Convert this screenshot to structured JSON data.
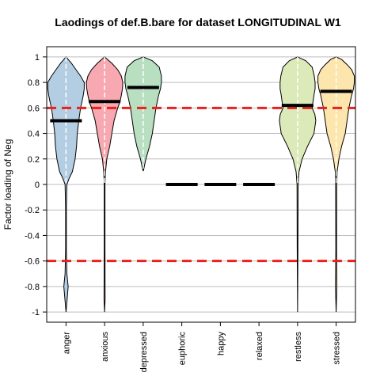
{
  "chart_data": {
    "type": "violin",
    "title": "Laodings of def.B.bare for dataset LONGITUDINAL W1",
    "xlabel": "",
    "ylabel": "Factor loading of Neg",
    "ylim": [
      -1.08,
      1.08
    ],
    "yticks": [
      1,
      0.8,
      0.6,
      0.4,
      0.2,
      0,
      -0.2,
      -0.4,
      -0.6,
      -0.8,
      -1
    ],
    "ytick_labels": [
      "1",
      "0.8",
      "0.6",
      "0.4",
      "0.2",
      "0",
      "-0.2",
      "-0.4",
      "-0.6",
      "-0.8",
      "-1"
    ],
    "grid": true,
    "threshold_lines": [
      0.6,
      -0.6
    ],
    "threshold_color": "#e8211c",
    "categories": [
      "anger",
      "anxious",
      "depressed",
      "euphoric",
      "happy",
      "relaxed",
      "restless",
      "stressed"
    ],
    "colors": [
      "#b3cde3",
      "#f7a8b0",
      "#b8dfc0",
      "#ffffff",
      "#ffffff",
      "#ffffff",
      "#dbeab8",
      "#fde6ad"
    ],
    "means": [
      0.5,
      0.65,
      0.76,
      0,
      0,
      0,
      0.62,
      0.73
    ],
    "ranges": [
      [
        -1.0,
        1.0
      ],
      [
        -1.0,
        1.0
      ],
      [
        0.1,
        1.0
      ],
      [
        0,
        0
      ],
      [
        0,
        0
      ],
      [
        0,
        0
      ],
      [
        -1.0,
        1.0
      ],
      [
        -1.0,
        1.0
      ]
    ],
    "density": [
      [
        [
          1.0,
          0.0
        ],
        [
          0.95,
          0.3
        ],
        [
          0.9,
          0.55
        ],
        [
          0.85,
          0.8
        ],
        [
          0.8,
          1.0
        ],
        [
          0.75,
          1.0
        ],
        [
          0.7,
          0.95
        ],
        [
          0.65,
          0.88
        ],
        [
          0.6,
          0.8
        ],
        [
          0.5,
          0.7
        ],
        [
          0.4,
          0.62
        ],
        [
          0.3,
          0.58
        ],
        [
          0.2,
          0.5
        ],
        [
          0.1,
          0.35
        ],
        [
          0.05,
          0.18
        ],
        [
          0.0,
          0.05
        ],
        [
          -0.2,
          0.02
        ],
        [
          -0.5,
          0.02
        ],
        [
          -0.7,
          0.05
        ],
        [
          -0.8,
          0.12
        ],
        [
          -0.9,
          0.06
        ],
        [
          -1.0,
          0.0
        ]
      ],
      [
        [
          1.0,
          0.0
        ],
        [
          0.95,
          0.4
        ],
        [
          0.9,
          0.72
        ],
        [
          0.85,
          0.92
        ],
        [
          0.8,
          1.0
        ],
        [
          0.75,
          0.98
        ],
        [
          0.7,
          0.92
        ],
        [
          0.65,
          0.85
        ],
        [
          0.6,
          0.72
        ],
        [
          0.5,
          0.52
        ],
        [
          0.4,
          0.4
        ],
        [
          0.3,
          0.28
        ],
        [
          0.2,
          0.12
        ],
        [
          0.1,
          0.05
        ],
        [
          0.0,
          0.02
        ],
        [
          -0.5,
          0.02
        ],
        [
          -0.9,
          0.03
        ],
        [
          -1.0,
          0.0
        ]
      ],
      [
        [
          1.0,
          0.0
        ],
        [
          0.97,
          0.5
        ],
        [
          0.92,
          0.88
        ],
        [
          0.85,
          1.0
        ],
        [
          0.8,
          1.0
        ],
        [
          0.75,
          0.95
        ],
        [
          0.7,
          0.85
        ],
        [
          0.6,
          0.7
        ],
        [
          0.5,
          0.6
        ],
        [
          0.4,
          0.5
        ],
        [
          0.3,
          0.35
        ],
        [
          0.2,
          0.15
        ],
        [
          0.1,
          0.0
        ]
      ],
      [],
      [],
      [],
      [
        [
          1.0,
          0.0
        ],
        [
          0.97,
          0.45
        ],
        [
          0.92,
          0.8
        ],
        [
          0.85,
          0.92
        ],
        [
          0.8,
          0.96
        ],
        [
          0.75,
          0.96
        ],
        [
          0.7,
          0.9
        ],
        [
          0.65,
          0.85
        ],
        [
          0.6,
          0.8
        ],
        [
          0.55,
          0.95
        ],
        [
          0.5,
          1.0
        ],
        [
          0.4,
          0.9
        ],
        [
          0.3,
          0.55
        ],
        [
          0.2,
          0.25
        ],
        [
          0.1,
          0.08
        ],
        [
          0.0,
          0.03
        ],
        [
          -0.5,
          0.02
        ],
        [
          -1.0,
          0.0
        ]
      ],
      [
        [
          1.0,
          0.0
        ],
        [
          0.98,
          0.3
        ],
        [
          0.94,
          0.6
        ],
        [
          0.9,
          0.85
        ],
        [
          0.85,
          1.0
        ],
        [
          0.8,
          1.0
        ],
        [
          0.75,
          0.95
        ],
        [
          0.7,
          0.85
        ],
        [
          0.6,
          0.7
        ],
        [
          0.5,
          0.6
        ],
        [
          0.4,
          0.5
        ],
        [
          0.3,
          0.3
        ],
        [
          0.2,
          0.15
        ],
        [
          0.1,
          0.05
        ],
        [
          0.0,
          0.03
        ],
        [
          -0.5,
          0.02
        ],
        [
          -0.8,
          0.04
        ],
        [
          -1.0,
          0.0
        ]
      ]
    ]
  }
}
